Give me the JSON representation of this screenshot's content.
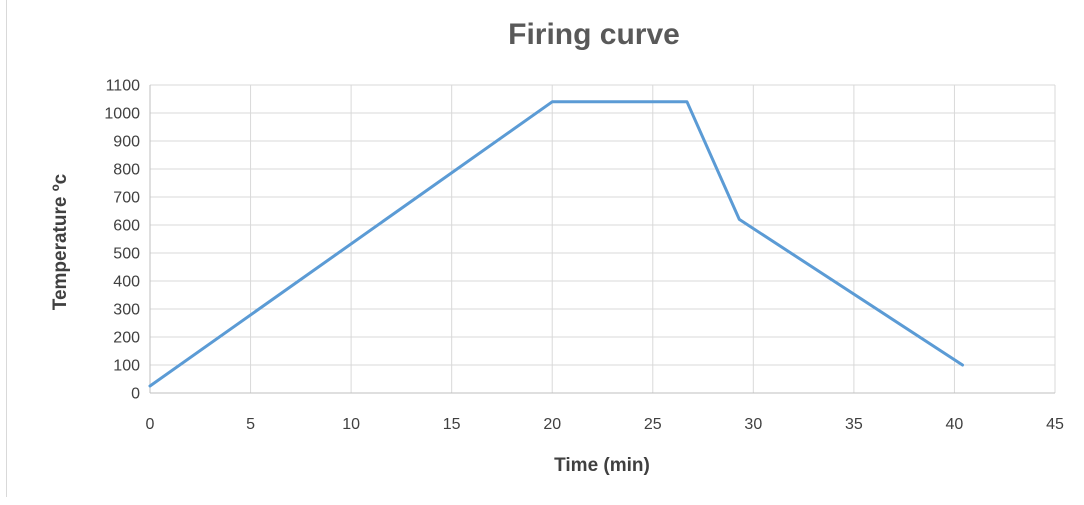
{
  "chart_data": {
    "type": "line",
    "title": "Firing curve",
    "xlabel": "Time (min)",
    "ylabel": "Temperature ºc",
    "xlim": [
      0,
      45
    ],
    "ylim": [
      0,
      1100
    ],
    "x_ticks": [
      0,
      5,
      10,
      15,
      20,
      25,
      30,
      35,
      40,
      45
    ],
    "y_ticks": [
      0,
      100,
      200,
      300,
      400,
      500,
      600,
      700,
      800,
      900,
      1000,
      1100
    ],
    "grid": true,
    "legend": "none",
    "series": [
      {
        "color": "#5b9bd5",
        "points": [
          [
            0,
            25
          ],
          [
            20,
            1040
          ],
          [
            26.7,
            1040
          ],
          [
            29.3,
            620
          ],
          [
            40.4,
            100
          ]
        ]
      }
    ]
  }
}
